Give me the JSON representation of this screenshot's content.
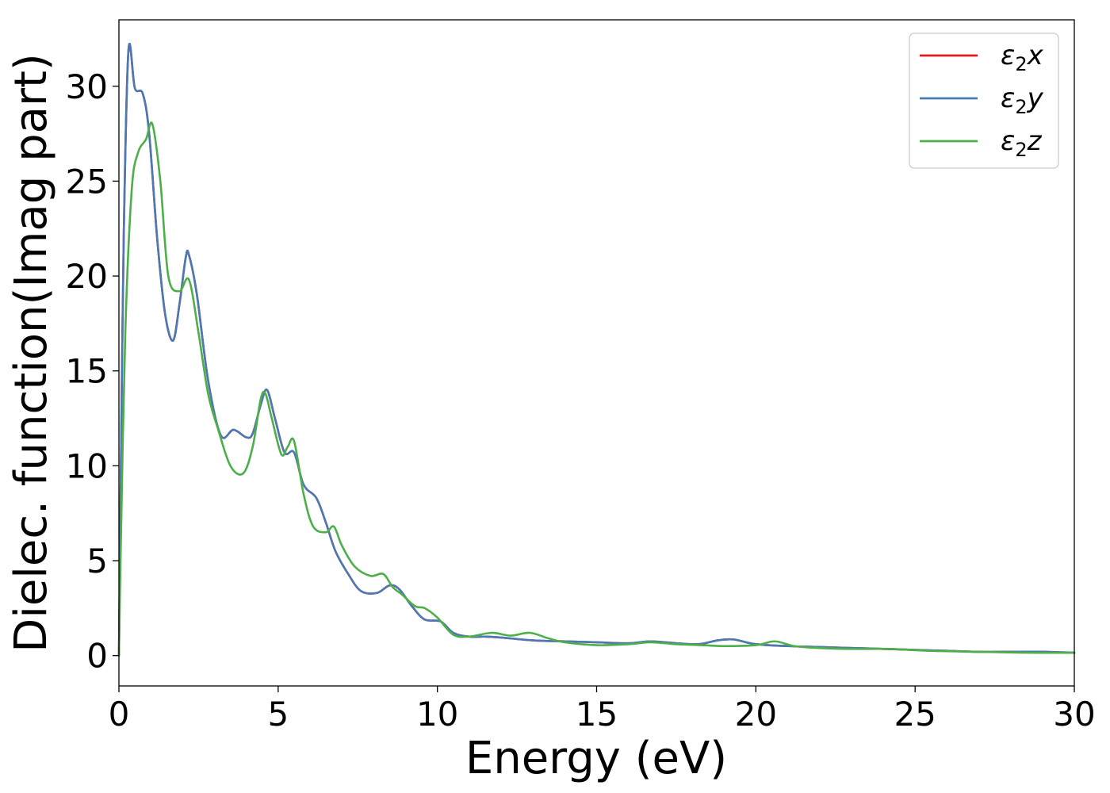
{
  "chart_data": {
    "type": "line",
    "title": "",
    "xlabel": "Energy (eV)",
    "ylabel": "Dielec. function(Imag part)",
    "xlim": [
      0,
      30
    ],
    "ylim": [
      -1.6,
      33.5
    ],
    "xticks": [
      0,
      5,
      10,
      15,
      20,
      25,
      30
    ],
    "yticks": [
      0,
      5,
      10,
      15,
      20,
      25,
      30
    ],
    "grid": false,
    "legend_position": "top-right",
    "series": [
      {
        "name": "ε2x",
        "legend_base": "ε",
        "legend_sub": "2",
        "legend_var": "x",
        "color": "#e41a1c",
        "x": [
          0,
          0.05,
          0.15,
          0.3,
          0.5,
          0.75,
          0.95,
          1.2,
          1.45,
          1.7,
          1.9,
          2.1,
          2.2,
          2.45,
          2.8,
          3.2,
          3.6,
          4.0,
          4.2,
          4.45,
          4.65,
          4.9,
          5.2,
          5.5,
          5.8,
          6.2,
          6.5,
          6.8,
          7.2,
          7.6,
          8.1,
          8.5,
          8.8,
          9.2,
          9.6,
          10.1,
          10.5,
          11.0,
          11.5,
          12.0,
          13.0,
          14.0,
          15.0,
          16.0,
          16.7,
          17.5,
          18.2,
          18.8,
          19.3,
          20.0,
          21.0,
          22.0,
          23.0,
          24.0,
          25.0,
          26.0,
          27.0,
          28.0,
          29.0,
          30.0
        ],
        "y": [
          0,
          8.0,
          22.0,
          31.9,
          29.9,
          29.6,
          27.5,
          22.0,
          18.0,
          16.6,
          18.5,
          21.0,
          21.1,
          19.0,
          14.5,
          11.6,
          11.9,
          11.5,
          11.7,
          13.2,
          14.0,
          12.5,
          10.7,
          10.7,
          9.0,
          8.3,
          7.0,
          5.5,
          4.3,
          3.4,
          3.3,
          3.7,
          3.5,
          2.6,
          1.9,
          1.8,
          1.2,
          1.0,
          1.0,
          0.95,
          0.8,
          0.75,
          0.7,
          0.65,
          0.75,
          0.65,
          0.6,
          0.8,
          0.85,
          0.6,
          0.5,
          0.45,
          0.4,
          0.35,
          0.3,
          0.25,
          0.2,
          0.2,
          0.2,
          0.15
        ]
      },
      {
        "name": "ε2y",
        "legend_base": "ε",
        "legend_sub": "2",
        "legend_var": "y",
        "color": "#4a7ab5",
        "x": [
          0,
          0.05,
          0.15,
          0.3,
          0.5,
          0.75,
          0.95,
          1.2,
          1.45,
          1.7,
          1.9,
          2.1,
          2.2,
          2.45,
          2.8,
          3.2,
          3.6,
          4.0,
          4.2,
          4.45,
          4.65,
          4.9,
          5.2,
          5.5,
          5.8,
          6.2,
          6.5,
          6.8,
          7.2,
          7.6,
          8.1,
          8.5,
          8.8,
          9.2,
          9.6,
          10.1,
          10.5,
          11.0,
          11.5,
          12.0,
          13.0,
          14.0,
          15.0,
          16.0,
          16.7,
          17.5,
          18.2,
          18.8,
          19.3,
          20.0,
          21.0,
          22.0,
          23.0,
          24.0,
          25.0,
          26.0,
          27.0,
          28.0,
          29.0,
          30.0
        ],
        "y": [
          0,
          8.0,
          22.0,
          31.9,
          29.9,
          29.6,
          27.5,
          22.0,
          18.0,
          16.6,
          18.5,
          21.0,
          21.1,
          19.0,
          14.5,
          11.6,
          11.9,
          11.5,
          11.7,
          13.2,
          14.0,
          12.5,
          10.7,
          10.7,
          9.0,
          8.3,
          7.0,
          5.5,
          4.3,
          3.4,
          3.3,
          3.7,
          3.5,
          2.6,
          1.9,
          1.8,
          1.2,
          1.0,
          1.0,
          0.95,
          0.8,
          0.75,
          0.7,
          0.65,
          0.75,
          0.65,
          0.6,
          0.8,
          0.85,
          0.6,
          0.5,
          0.45,
          0.4,
          0.35,
          0.3,
          0.25,
          0.2,
          0.2,
          0.2,
          0.15
        ]
      },
      {
        "name": "ε2z",
        "legend_base": "ε",
        "legend_sub": "2",
        "legend_var": "z",
        "color": "#4daf4a",
        "x": [
          0,
          0.05,
          0.2,
          0.4,
          0.6,
          0.85,
          1.05,
          1.3,
          1.55,
          1.9,
          2.2,
          2.5,
          2.8,
          3.1,
          3.5,
          3.9,
          4.2,
          4.45,
          4.6,
          4.8,
          5.1,
          5.3,
          5.5,
          5.8,
          6.1,
          6.5,
          6.75,
          7.0,
          7.4,
          7.9,
          8.3,
          8.6,
          8.9,
          9.3,
          9.6,
          10.0,
          10.5,
          11.0,
          11.7,
          12.3,
          12.9,
          13.5,
          14.0,
          15.0,
          16.0,
          16.7,
          17.5,
          18.3,
          19.0,
          20.0,
          20.6,
          21.2,
          22.0,
          23.0,
          24.2,
          25.5,
          27.0,
          28.5,
          30.0
        ],
        "y": [
          0,
          5.0,
          17.0,
          24.5,
          26.5,
          27.2,
          28.0,
          25.0,
          20.0,
          19.2,
          19.8,
          17.0,
          13.8,
          12.0,
          10.0,
          9.6,
          11.0,
          13.5,
          13.8,
          12.5,
          10.6,
          11.0,
          11.3,
          8.5,
          6.8,
          6.5,
          6.8,
          5.8,
          4.7,
          4.2,
          4.3,
          3.6,
          3.2,
          2.6,
          2.5,
          2.0,
          1.1,
          1.0,
          1.2,
          1.05,
          1.2,
          0.9,
          0.7,
          0.55,
          0.6,
          0.7,
          0.6,
          0.55,
          0.5,
          0.55,
          0.75,
          0.5,
          0.4,
          0.35,
          0.35,
          0.25,
          0.2,
          0.15,
          0.15
        ]
      }
    ]
  }
}
